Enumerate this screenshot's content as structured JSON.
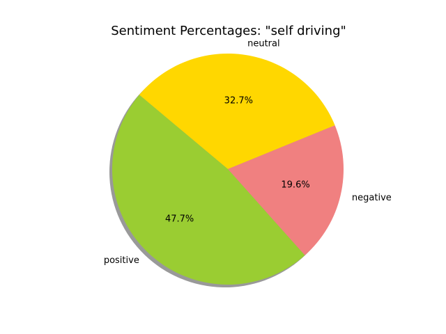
{
  "chart_data": {
    "type": "pie",
    "title": "Sentiment Percentages: \"self driving\"",
    "categories": [
      "neutral",
      "negative",
      "positive"
    ],
    "values": [
      32.7,
      19.6,
      47.7
    ],
    "value_labels": [
      "32.7%",
      "19.6%",
      "47.7%"
    ],
    "colors": [
      "#ffd700",
      "#f08080",
      "#9acd32"
    ],
    "shadow": true,
    "start_angle_deg": 140,
    "direction": "clockwise",
    "legend": "none"
  }
}
